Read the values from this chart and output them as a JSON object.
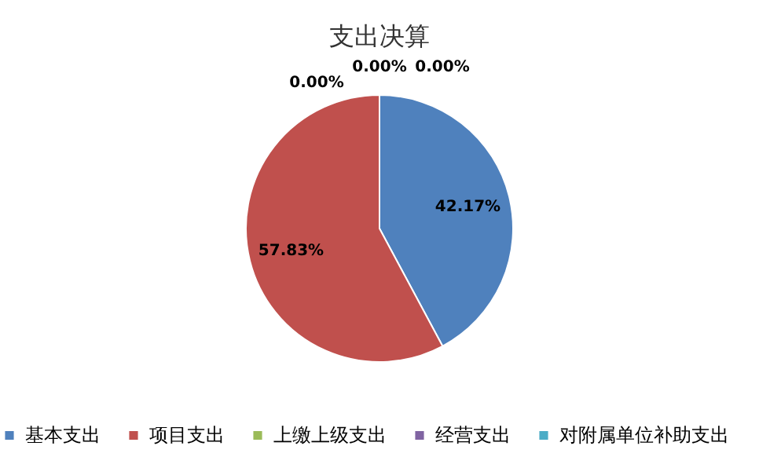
{
  "chart_data": {
    "type": "pie",
    "title": "支出决算",
    "categories": [
      "基本支出",
      "项目支出",
      "上缴上级支出",
      "经营支出",
      "对附属单位补助支出"
    ],
    "values": [
      42.17,
      57.83,
      0,
      0,
      0
    ],
    "colors": [
      "#4f81bd",
      "#c0504d",
      "#9bbb59",
      "#8064a2",
      "#4bacc6"
    ],
    "value_labels": [
      "42.17%",
      "57.83%",
      "0.00%",
      "0.00%",
      "0.00%"
    ],
    "legend": "bottom"
  }
}
